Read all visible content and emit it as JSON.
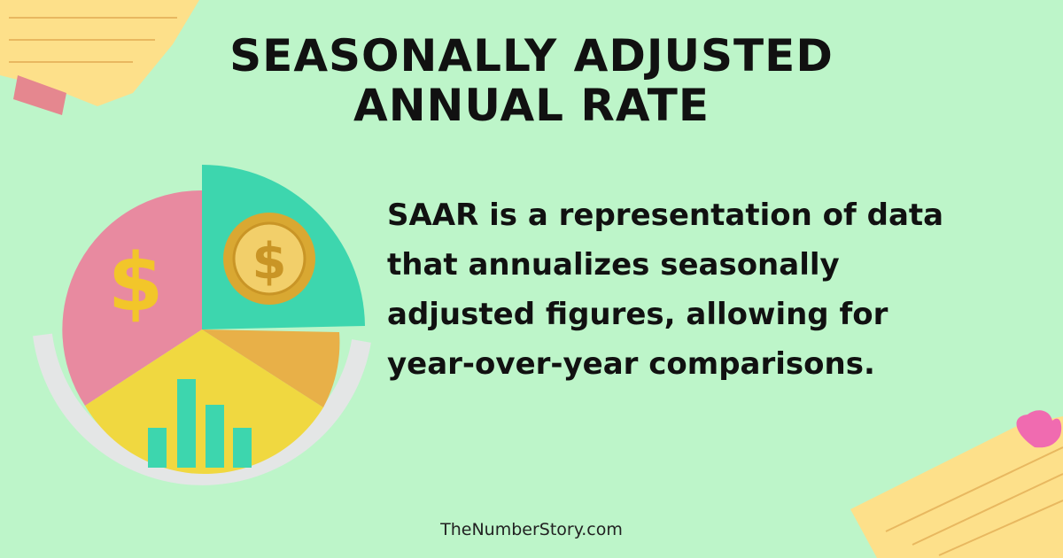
{
  "header": {
    "title_lines": [
      "SEASONALLY ADJUSTED",
      "ANNUAL RATE"
    ]
  },
  "body": {
    "lines": [
      "SAAR is a representation of data",
      "that annualizes seasonally",
      "adjusted figures, allowing for",
      "year-over-year comparisons."
    ]
  },
  "footer": {
    "site": "TheNumberStory.com"
  }
}
